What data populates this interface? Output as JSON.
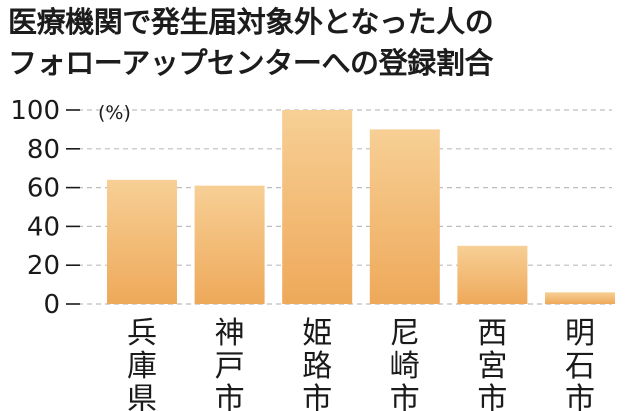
{
  "chart_data": {
    "type": "bar",
    "title_lines": [
      "医療機関で発生届対象外となった人の",
      "フォローアップセンターへの登録割合"
    ],
    "unit": "(%)",
    "categories": [
      "兵庫県",
      "神戸市",
      "姫路市",
      "尼崎市",
      "西宮市",
      "明石市"
    ],
    "values": [
      64,
      61,
      100,
      90,
      30,
      6
    ],
    "ylim": [
      0,
      100
    ],
    "yticks": [
      0,
      20,
      40,
      60,
      80,
      100
    ],
    "grid": true,
    "colors": {
      "bar_top": "#f7cf95",
      "bar_bottom": "#eea95a",
      "grid": "#bdbdbd",
      "tick": "#1a1a1a"
    }
  }
}
